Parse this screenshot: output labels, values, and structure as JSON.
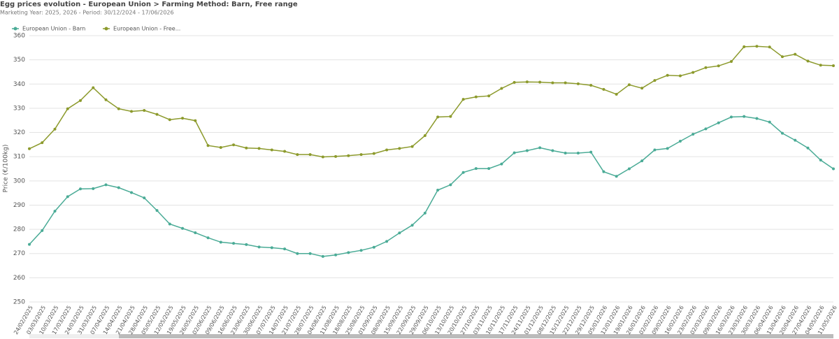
{
  "chart_data": {
    "type": "line",
    "title": "Egg prices evolution - European Union > Farming Method: Barn, Free range",
    "subtitle": "Marketing Year: 2025, 2026 - Period: 30/12/2024 - 17/06/2026",
    "y_label": "Price (€/100kg)",
    "categories": [
      "24/02/2025",
      "03/03/2025",
      "10/03/2025",
      "17/03/2025",
      "24/03/2025",
      "31/03/2025",
      "07/04/2025",
      "14/04/2025",
      "21/04/2025",
      "28/04/2025",
      "05/05/2025",
      "12/05/2025",
      "19/05/2025",
      "26/05/2025",
      "02/06/2025",
      "09/06/2025",
      "16/06/2025",
      "23/06/2025",
      "30/06/2025",
      "07/07/2025",
      "14/07/2025",
      "21/07/2025",
      "28/07/2025",
      "04/08/2025",
      "11/08/2025",
      "18/08/2025",
      "25/08/2025",
      "01/09/2025",
      "08/09/2025",
      "15/09/2025",
      "22/09/2025",
      "29/09/2025",
      "06/10/2025",
      "13/10/2025",
      "20/10/2025",
      "27/10/2025",
      "03/11/2025",
      "10/11/2025",
      "17/11/2025",
      "24/11/2025",
      "01/12/2025",
      "08/12/2025",
      "15/12/2025",
      "22/12/2025",
      "29/12/2025",
      "05/01/2026",
      "12/01/2026",
      "19/01/2026",
      "26/01/2026",
      "02/02/2026",
      "09/02/2026",
      "16/02/2026",
      "23/02/2026",
      "02/03/2026",
      "09/03/2026",
      "16/03/2026",
      "23/03/2026",
      "30/03/2026",
      "06/04/2026",
      "13/04/2026",
      "20/04/2026",
      "27/04/2026",
      "04/05/2026",
      "11/05/2026"
    ],
    "series": [
      {
        "name": "European Union - Barn",
        "color": "#4aab96",
        "values": [
          273.8,
          279.5,
          287.5,
          293.5,
          296.7,
          296.8,
          298.4,
          297.2,
          295.2,
          293.0,
          287.8,
          282.2,
          280.4,
          278.6,
          276.5,
          274.7,
          274.2,
          273.7,
          272.7,
          272.4,
          271.9,
          270.0,
          270.0,
          268.8,
          269.4,
          270.4,
          271.3,
          272.6,
          275.0,
          278.5,
          281.7,
          286.7,
          296.2,
          298.4,
          303.5,
          305.1,
          305.1,
          307.0,
          311.6,
          312.5,
          313.7,
          312.5,
          311.5,
          311.5,
          311.9,
          303.8,
          301.9,
          305.0,
          308.3,
          312.8,
          313.4,
          316.4,
          319.3,
          321.5,
          324.0,
          326.4,
          326.6,
          325.8,
          324.3,
          319.7,
          316.8,
          313.6,
          308.6,
          305.0
        ]
      },
      {
        "name": "European Union - Free...",
        "color": "#8c9a2c",
        "values": [
          313.3,
          315.8,
          321.4,
          329.8,
          333.2,
          338.5,
          333.5,
          329.8,
          328.7,
          329.1,
          327.5,
          325.3,
          325.9,
          324.9,
          314.6,
          313.8,
          314.9,
          313.6,
          313.4,
          312.8,
          312.2,
          310.9,
          310.9,
          309.9,
          310.1,
          310.4,
          310.9,
          311.3,
          312.8,
          313.4,
          314.2,
          318.7,
          326.4,
          326.6,
          333.7,
          334.7,
          335.1,
          338.2,
          340.7,
          340.9,
          340.8,
          340.5,
          340.5,
          340.1,
          339.5,
          337.8,
          335.8,
          339.7,
          338.3,
          341.5,
          343.6,
          343.4,
          344.8,
          346.8,
          347.5,
          349.3,
          355.4,
          355.6,
          355.3,
          351.3,
          352.3,
          349.5,
          347.8,
          347.6
        ]
      }
    ],
    "ylim": [
      250,
      360
    ],
    "yticks": [
      250,
      260,
      270,
      280,
      290,
      300,
      310,
      320,
      330,
      340,
      350,
      360
    ],
    "grid": true,
    "legend": "top-left"
  }
}
